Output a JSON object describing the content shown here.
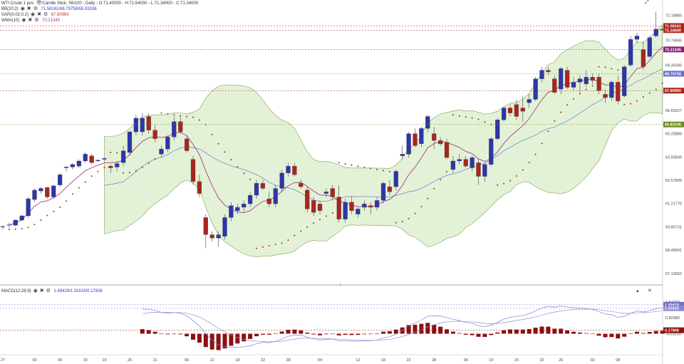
{
  "header": {
    "symbol": "WTI Crude 1 pos",
    "info": "Candle Stick, 56/100 - Daily - O:71.40000 - H:71.54000 - L:71.34000 - C:71.34000",
    "indicators": [
      {
        "name": "BB(20;2)",
        "values": "71.58161/68.79758/65.83336"
      },
      {
        "name": "SAR(0.02;0.2)",
        "values": "67.80960"
      },
      {
        "name": "WMA(10)",
        "values": "70.21345"
      }
    ],
    "macd": {
      "name": "MACD(12;26;9)",
      "values": "1.49429/1.31615/0.17808"
    }
  },
  "icons": {
    "eye": "eye-icon",
    "close": "close-icon",
    "settings": "gear-icon",
    "expand": "expand-icon",
    "panel_close": "close-icon",
    "panel_collapse": "chevron-up-icon",
    "splitter": "splitter-icon"
  },
  "colors": {
    "up": "#2e35a8",
    "down": "#a8261e",
    "band": "#d9edc8",
    "band_line": "#7fa15a",
    "wma": "#a0408f",
    "mid": "#7f86d8",
    "sar": "#a8261e",
    "macd_line": "#7f86d8",
    "signal_line": "#9a8fd0",
    "hist": "#8b1010"
  },
  "price_axis": {
    "ticks": [
      "72.19885",
      "70.74845",
      "69.30306",
      "67.85767",
      "66.65927",
      "65.29888",
      "63.93849",
      "62.57809",
      "61.21770",
      "59.85731",
      "58.49691",
      "57.13652"
    ],
    "tick_values": [
      72.19885,
      70.74845,
      69.30306,
      67.85767,
      66.65927,
      65.29888,
      63.93849,
      62.57809,
      61.2177,
      59.85731,
      58.49691,
      57.13652
    ],
    "range": [
      56.55,
      72.6
    ]
  },
  "price_tags": [
    {
      "label": "71.58161",
      "value": 71.58161,
      "color": "#a8261e"
    },
    {
      "label": "71.34000",
      "value": 71.34,
      "color": "#a8261e"
    },
    {
      "label": "70.21345",
      "value": 70.21345,
      "color": "#8a1f74"
    },
    {
      "label": "68.79758",
      "value": 68.79758,
      "color": "#6b70c8"
    },
    {
      "label": "67.80960",
      "value": 67.8096,
      "color": "#a8261e"
    },
    {
      "label": "65.83336",
      "value": 65.83336,
      "color": "#6f8a22"
    }
  ],
  "macd_axis": {
    "ticks": [
      "1.64270",
      "0.82980",
      "-0.01010"
    ],
    "tick_values": [
      1.6427,
      0.8298,
      -0.0101
    ],
    "range": [
      -1.05,
      2.15
    ],
    "tags": [
      {
        "label": "1.49429",
        "value": 1.49429,
        "color": "#6b70c8"
      },
      {
        "label": "1.31615",
        "value": 1.31615,
        "color": "#8f86d0"
      },
      {
        "label": "0.17808",
        "value": 0.17808,
        "color": "#8b1010"
      }
    ]
  },
  "x_axis_labels": [
    {
      "label": "27",
      "i": 0
    },
    {
      "label": "03",
      "i": 5
    },
    {
      "label": "09",
      "i": 9
    },
    {
      "label": "15",
      "i": 13
    },
    {
      "label": "19",
      "i": 16
    },
    {
      "label": "25",
      "i": 20
    },
    {
      "label": "31",
      "i": 24
    },
    {
      "label": "06",
      "i": 29
    },
    {
      "label": "12",
      "i": 33
    },
    {
      "label": "18",
      "i": 37
    },
    {
      "label": "22",
      "i": 41
    },
    {
      "label": "28",
      "i": 45
    },
    {
      "label": "04",
      "i": 50
    },
    {
      "label": "12",
      "i": 56
    },
    {
      "label": "18",
      "i": 60
    },
    {
      "label": "22",
      "i": 64
    },
    {
      "label": "28",
      "i": 68
    },
    {
      "label": "04",
      "i": 73
    },
    {
      "label": "10",
      "i": 77
    },
    {
      "label": "16",
      "i": 81
    },
    {
      "label": "22",
      "i": 85
    },
    {
      "label": "26",
      "i": 88
    },
    {
      "label": "02",
      "i": 93
    },
    {
      "label": "08",
      "i": 97
    }
  ],
  "chart_data": {
    "type": "candlestick",
    "title": "WTI Crude 1 pos",
    "candles": [
      {
        "o": 59.85,
        "h": 59.95,
        "l": 59.7,
        "c": 59.88
      },
      {
        "o": 59.95,
        "h": 60.1,
        "l": 59.8,
        "c": 59.98
      },
      {
        "o": 59.95,
        "h": 60.3,
        "l": 59.9,
        "c": 60.25
      },
      {
        "o": 60.25,
        "h": 60.55,
        "l": 60.2,
        "c": 60.5
      },
      {
        "o": 60.5,
        "h": 61.6,
        "l": 60.4,
        "c": 61.5
      },
      {
        "o": 61.45,
        "h": 62.1,
        "l": 61.3,
        "c": 62.0
      },
      {
        "o": 61.95,
        "h": 62.2,
        "l": 61.8,
        "c": 62.1
      },
      {
        "o": 62.15,
        "h": 62.2,
        "l": 61.5,
        "c": 61.6
      },
      {
        "o": 61.6,
        "h": 62.3,
        "l": 61.5,
        "c": 62.25
      },
      {
        "o": 62.3,
        "h": 63.0,
        "l": 62.2,
        "c": 62.9
      },
      {
        "o": 63.3,
        "h": 63.4,
        "l": 63.1,
        "c": 63.35
      },
      {
        "o": 63.35,
        "h": 63.6,
        "l": 63.2,
        "c": 63.5
      },
      {
        "o": 63.4,
        "h": 63.8,
        "l": 63.3,
        "c": 63.7
      },
      {
        "o": 63.7,
        "h": 64.2,
        "l": 63.6,
        "c": 64.1
      },
      {
        "o": 64.0,
        "h": 64.1,
        "l": 63.5,
        "c": 63.6
      },
      {
        "o": 63.7,
        "h": 63.8,
        "l": 63.65,
        "c": 63.75
      },
      {
        "o": 63.8,
        "h": 63.9,
        "l": 63.7,
        "c": 63.85
      },
      {
        "o": 63.4,
        "h": 63.5,
        "l": 63.0,
        "c": 63.3
      },
      {
        "o": 63.35,
        "h": 63.7,
        "l": 63.1,
        "c": 63.55
      },
      {
        "o": 63.6,
        "h": 64.6,
        "l": 63.4,
        "c": 64.3
      },
      {
        "o": 64.2,
        "h": 65.5,
        "l": 64.0,
        "c": 65.4
      },
      {
        "o": 65.4,
        "h": 66.4,
        "l": 65.2,
        "c": 66.2
      },
      {
        "o": 65.4,
        "h": 66.5,
        "l": 65.2,
        "c": 66.2
      },
      {
        "o": 66.3,
        "h": 66.5,
        "l": 65.3,
        "c": 65.5
      },
      {
        "o": 65.5,
        "h": 65.8,
        "l": 64.8,
        "c": 65.0
      },
      {
        "o": 64.1,
        "h": 64.6,
        "l": 63.9,
        "c": 64.4
      },
      {
        "o": 64.4,
        "h": 65.2,
        "l": 64.2,
        "c": 65.1
      },
      {
        "o": 65.1,
        "h": 66.3,
        "l": 64.9,
        "c": 66.0
      },
      {
        "o": 66.0,
        "h": 66.3,
        "l": 65.3,
        "c": 65.4
      },
      {
        "o": 65.0,
        "h": 65.2,
        "l": 64.2,
        "c": 64.3
      },
      {
        "o": 63.8,
        "h": 64.0,
        "l": 62.3,
        "c": 62.5
      },
      {
        "o": 62.5,
        "h": 62.9,
        "l": 61.6,
        "c": 61.8
      },
      {
        "o": 60.4,
        "h": 60.6,
        "l": 58.6,
        "c": 59.4
      },
      {
        "o": 59.4,
        "h": 59.6,
        "l": 59.0,
        "c": 59.2
      },
      {
        "o": 59.2,
        "h": 59.6,
        "l": 58.7,
        "c": 59.4
      },
      {
        "o": 59.3,
        "h": 60.6,
        "l": 59.1,
        "c": 60.4
      },
      {
        "o": 60.4,
        "h": 61.3,
        "l": 60.2,
        "c": 61.1
      },
      {
        "o": 60.8,
        "h": 61.2,
        "l": 60.6,
        "c": 61.0
      },
      {
        "o": 61.0,
        "h": 61.4,
        "l": 60.7,
        "c": 61.2
      },
      {
        "o": 61.2,
        "h": 61.9,
        "l": 61.0,
        "c": 61.7
      },
      {
        "o": 61.7,
        "h": 62.6,
        "l": 61.5,
        "c": 62.4
      },
      {
        "o": 62.4,
        "h": 62.6,
        "l": 62.0,
        "c": 62.1
      },
      {
        "o": 61.5,
        "h": 61.9,
        "l": 61.0,
        "c": 61.2
      },
      {
        "o": 61.2,
        "h": 62.3,
        "l": 61.0,
        "c": 62.1
      },
      {
        "o": 62.1,
        "h": 63.2,
        "l": 61.9,
        "c": 63.0
      },
      {
        "o": 63.0,
        "h": 63.6,
        "l": 62.8,
        "c": 63.4
      },
      {
        "o": 63.4,
        "h": 63.6,
        "l": 62.8,
        "c": 62.9
      },
      {
        "o": 62.4,
        "h": 62.6,
        "l": 62.1,
        "c": 62.2
      },
      {
        "o": 62.0,
        "h": 62.2,
        "l": 60.7,
        "c": 60.9
      },
      {
        "o": 61.4,
        "h": 61.6,
        "l": 60.5,
        "c": 60.7
      },
      {
        "o": 61.2,
        "h": 61.4,
        "l": 60.6,
        "c": 60.8
      },
      {
        "o": 61.8,
        "h": 62.1,
        "l": 61.6,
        "c": 61.9
      },
      {
        "o": 62.1,
        "h": 62.3,
        "l": 61.4,
        "c": 61.6
      },
      {
        "o": 61.6,
        "h": 62.3,
        "l": 60.1,
        "c": 60.3
      },
      {
        "o": 60.3,
        "h": 61.5,
        "l": 60.1,
        "c": 61.3
      },
      {
        "o": 61.3,
        "h": 61.6,
        "l": 60.6,
        "c": 60.8
      },
      {
        "o": 60.6,
        "h": 61.0,
        "l": 60.4,
        "c": 60.9
      },
      {
        "o": 61.0,
        "h": 61.4,
        "l": 60.8,
        "c": 61.2
      },
      {
        "o": 61.1,
        "h": 61.3,
        "l": 60.6,
        "c": 61.0
      },
      {
        "o": 61.0,
        "h": 61.6,
        "l": 60.8,
        "c": 61.4
      },
      {
        "o": 61.4,
        "h": 62.5,
        "l": 61.2,
        "c": 62.4
      },
      {
        "o": 62.2,
        "h": 62.6,
        "l": 61.7,
        "c": 61.9
      },
      {
        "o": 62.2,
        "h": 63.2,
        "l": 62.0,
        "c": 63.1
      },
      {
        "o": 64.0,
        "h": 64.6,
        "l": 63.8,
        "c": 64.1
      },
      {
        "o": 64.1,
        "h": 65.4,
        "l": 63.9,
        "c": 65.3
      },
      {
        "o": 65.3,
        "h": 65.6,
        "l": 64.5,
        "c": 64.6
      },
      {
        "o": 64.7,
        "h": 65.7,
        "l": 64.5,
        "c": 65.6
      },
      {
        "o": 65.6,
        "h": 66.4,
        "l": 65.4,
        "c": 66.3
      },
      {
        "o": 65.3,
        "h": 65.7,
        "l": 64.4,
        "c": 64.9
      },
      {
        "o": 64.9,
        "h": 65.1,
        "l": 64.6,
        "c": 64.7
      },
      {
        "o": 64.8,
        "h": 65.0,
        "l": 63.8,
        "c": 63.9
      },
      {
        "o": 63.2,
        "h": 64.0,
        "l": 63.0,
        "c": 63.7
      },
      {
        "o": 63.7,
        "h": 64.1,
        "l": 63.5,
        "c": 63.8
      },
      {
        "o": 63.8,
        "h": 64.0,
        "l": 63.3,
        "c": 63.4
      },
      {
        "o": 63.3,
        "h": 64.0,
        "l": 63.1,
        "c": 63.9
      },
      {
        "o": 63.6,
        "h": 63.8,
        "l": 62.3,
        "c": 62.8
      },
      {
        "o": 62.8,
        "h": 63.6,
        "l": 62.5,
        "c": 63.5
      },
      {
        "o": 63.5,
        "h": 65.1,
        "l": 63.4,
        "c": 65.0
      },
      {
        "o": 65.0,
        "h": 66.2,
        "l": 64.9,
        "c": 66.1
      },
      {
        "o": 66.1,
        "h": 66.9,
        "l": 66.0,
        "c": 66.8
      },
      {
        "o": 66.8,
        "h": 67.0,
        "l": 66.3,
        "c": 66.5
      },
      {
        "o": 67.0,
        "h": 67.3,
        "l": 66.1,
        "c": 66.3
      },
      {
        "o": 66.8,
        "h": 67.5,
        "l": 66.0,
        "c": 66.6
      },
      {
        "o": 67.1,
        "h": 67.6,
        "l": 66.8,
        "c": 67.3
      },
      {
        "o": 67.3,
        "h": 68.6,
        "l": 67.2,
        "c": 68.5
      },
      {
        "o": 68.5,
        "h": 69.2,
        "l": 68.3,
        "c": 69.0
      },
      {
        "o": 69.0,
        "h": 69.2,
        "l": 68.7,
        "c": 68.9
      },
      {
        "o": 68.5,
        "h": 68.7,
        "l": 67.6,
        "c": 67.7
      },
      {
        "o": 67.9,
        "h": 69.2,
        "l": 67.6,
        "c": 69.1
      },
      {
        "o": 69.0,
        "h": 69.2,
        "l": 67.9,
        "c": 68.0
      },
      {
        "o": 68.0,
        "h": 68.6,
        "l": 67.8,
        "c": 68.3
      },
      {
        "o": 68.3,
        "h": 68.7,
        "l": 67.7,
        "c": 68.5
      },
      {
        "o": 68.2,
        "h": 69.0,
        "l": 68.0,
        "c": 68.6
      },
      {
        "o": 68.6,
        "h": 68.8,
        "l": 68.2,
        "c": 68.4
      },
      {
        "o": 68.6,
        "h": 68.8,
        "l": 67.6,
        "c": 67.8
      },
      {
        "o": 67.6,
        "h": 67.9,
        "l": 67.1,
        "c": 67.4
      },
      {
        "o": 67.4,
        "h": 68.4,
        "l": 67.2,
        "c": 68.3
      },
      {
        "o": 68.3,
        "h": 68.7,
        "l": 67.0,
        "c": 67.2
      },
      {
        "o": 67.5,
        "h": 69.3,
        "l": 67.4,
        "c": 69.2
      },
      {
        "o": 69.3,
        "h": 71.0,
        "l": 69.2,
        "c": 70.8
      },
      {
        "o": 70.8,
        "h": 71.2,
        "l": 70.6,
        "c": 71.0
      },
      {
        "o": 70.2,
        "h": 70.7,
        "l": 69.0,
        "c": 69.2
      },
      {
        "o": 69.8,
        "h": 71.0,
        "l": 69.7,
        "c": 70.9
      },
      {
        "o": 71.0,
        "h": 72.4,
        "l": 70.9,
        "c": 71.4
      },
      {
        "o": 71.4,
        "h": 71.54,
        "l": 71.34,
        "c": 71.34
      }
    ]
  }
}
